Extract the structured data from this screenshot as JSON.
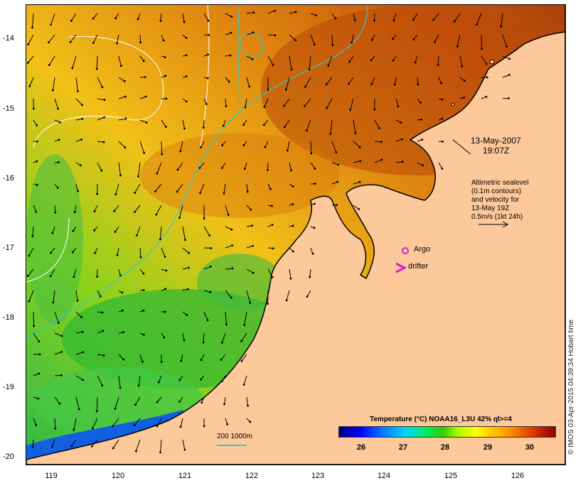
{
  "map": {
    "y_axis_labels": [
      "-14",
      "-15",
      "-16",
      "-17",
      "-18",
      "-19",
      "-20"
    ],
    "x_axis_labels": [
      "119",
      "120",
      "121",
      "122",
      "123",
      "124",
      "125",
      "126"
    ],
    "date_line1": "13-May-2007",
    "date_line2": "19:07Z",
    "info_lines": [
      "Altimetric sealevel",
      "(0.1m contours)",
      "and velocity for",
      "13-May 19Z",
      "0.5m/s (1kt 24h)"
    ],
    "argo_label": "Argo",
    "drifter_label": "drifter",
    "depth_label": "200  1000m",
    "colorbar_title": "Temperature (°C) NOAA16_L3U 42% ql>=4",
    "colorbar_ticks": [
      "26",
      "27",
      "28",
      "29",
      "30"
    ],
    "side_credit": "© IMOS 03-Apr-2015 04:39:34 Hobart time",
    "colors": {
      "land": "#fdc89a",
      "warm": "#c8500a",
      "mid": "#f0a020",
      "cool": "#3cbb3c",
      "isobath": "#33c9c9",
      "argo": "#d020d0"
    }
  }
}
